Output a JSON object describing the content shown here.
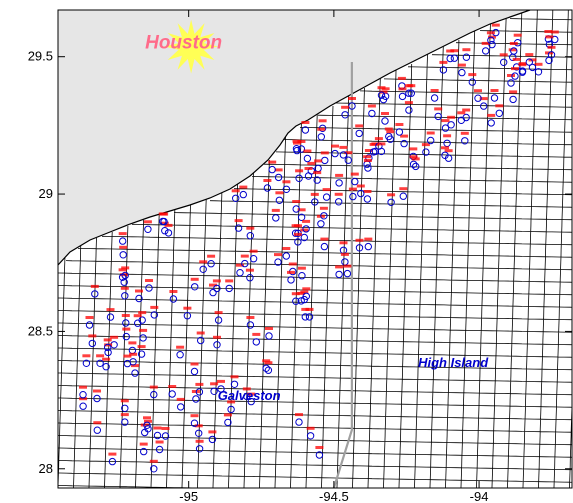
{
  "figure": {
    "axes": {
      "x_ticks": [
        {
          "value": -95,
          "label": "-95"
        },
        {
          "value": -94.5,
          "label": "-94.5"
        },
        {
          "value": -94,
          "label": "-94"
        }
      ],
      "y_ticks": [
        {
          "value": 29.5,
          "label": "29.5"
        },
        {
          "value": 29,
          "label": "29"
        },
        {
          "value": 28.5,
          "label": "28.5"
        },
        {
          "value": 28,
          "label": "28"
        }
      ],
      "x_range": [
        -95.45,
        -93.68
      ],
      "y_range": [
        27.93,
        29.67
      ]
    },
    "places": [
      {
        "name": "Houston",
        "lon": -95.15,
        "lat": 29.53,
        "color": "#ff6b8a"
      },
      {
        "name": "High Island",
        "lon": -94.21,
        "lat": 28.37,
        "color": "#0000cc"
      },
      {
        "name": "Galveston",
        "lon": -94.9,
        "lat": 28.25,
        "color": "#0000cc"
      }
    ],
    "colors": {
      "land": "#e6e6e6",
      "water": "#ffffff",
      "grid": "#000000",
      "coastline": "#000000",
      "boundary": "#a0a0a0",
      "station_marker": "#0000cc",
      "station_label": "#ff0000",
      "sun": "#ffff55"
    },
    "sun_icon": "sun-icon",
    "boundary_lon": -94.5
  }
}
